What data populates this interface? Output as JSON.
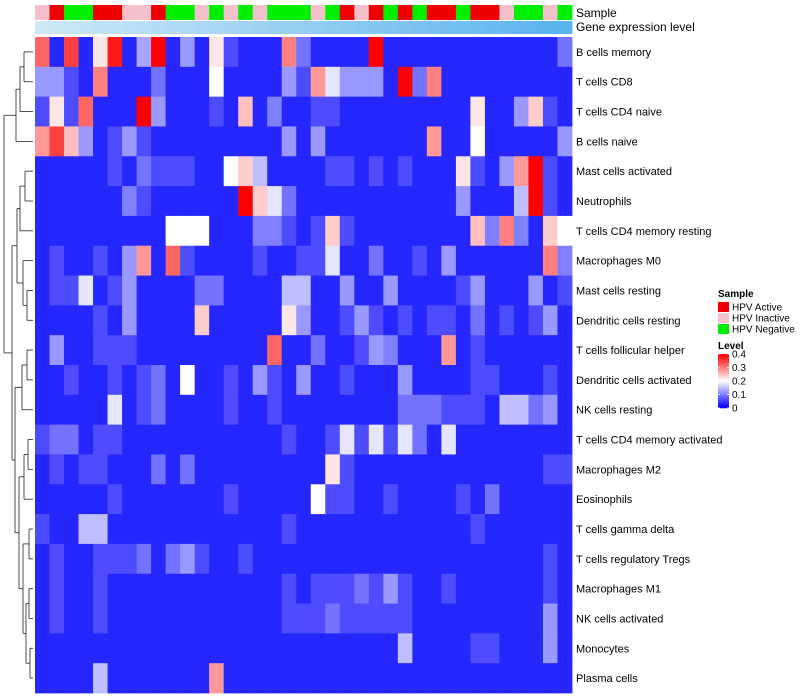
{
  "chart_data": {
    "type": "heatmap",
    "title": "",
    "annotation_labels": [
      "Sample",
      "Gene expression level"
    ],
    "row_labels": [
      "B cells memory",
      "T cells CD8",
      "T cells CD4 naive",
      "B cells naive",
      "Mast cells activated",
      "Neutrophils",
      "T cells CD4 memory resting",
      "Macrophages M0",
      "Mast cells resting",
      "Dendritic cells resting",
      "T cells follicular helper",
      "Dendritic cells activated",
      "NK cells resting",
      "T cells CD4 memory activated",
      "Macrophages M2",
      "Eosinophils",
      "T cells gamma delta",
      "T cells regulatory  Tregs",
      "Macrophages M1",
      "NK cells activated",
      "Monocytes",
      "Plasma cells"
    ],
    "sample_groups": [
      "Inactive",
      "Active",
      "Negative",
      "Negative",
      "Active",
      "Active",
      "Inactive",
      "Inactive",
      "Active",
      "Negative",
      "Negative",
      "Inactive",
      "Negative",
      "Inactive",
      "Negative",
      "Inactive",
      "Negative",
      "Negative",
      "Negative",
      "Inactive",
      "Negative",
      "Active",
      "Inactive",
      "Active",
      "Negative",
      "Active",
      "Negative",
      "Active",
      "Active",
      "Negative",
      "Active",
      "Active",
      "Inactive",
      "Negative",
      "Negative",
      "Inactive",
      "Negative"
    ],
    "gene_expression_row": "light",
    "values": [
      [
        0.32,
        0.03,
        0.35,
        0.03,
        0.22,
        0.38,
        0.03,
        0.13,
        0.42,
        0.03,
        0.12,
        0.03,
        0.22,
        0.06,
        0.03,
        0.03,
        0.03,
        0.3,
        0.09,
        0.03,
        0.03,
        0.03,
        0.03,
        0.42,
        0.03,
        0.03,
        0.03,
        0.03,
        0.03,
        0.03,
        0.03,
        0.03,
        0.03,
        0.03,
        0.03,
        0.03,
        0.09
      ],
      [
        0.12,
        0.12,
        0.06,
        0.03,
        0.3,
        0.03,
        0.03,
        0.03,
        0.09,
        0.03,
        0.03,
        0.03,
        0.2,
        0.03,
        0.03,
        0.03,
        0.03,
        0.12,
        0.06,
        0.28,
        0.18,
        0.12,
        0.12,
        0.12,
        0.03,
        0.42,
        0.09,
        0.3,
        0.03,
        0.03,
        0.03,
        0.03,
        0.03,
        0.03,
        0.03,
        0.03,
        0.03
      ],
      [
        0.06,
        0.22,
        0.06,
        0.32,
        0.03,
        0.03,
        0.03,
        0.42,
        0.12,
        0.03,
        0.03,
        0.03,
        0.06,
        0.03,
        0.25,
        0.03,
        0.1,
        0.03,
        0.03,
        0.06,
        0.06,
        0.03,
        0.03,
        0.03,
        0.03,
        0.03,
        0.03,
        0.03,
        0.03,
        0.03,
        0.22,
        0.03,
        0.03,
        0.12,
        0.24,
        0.06,
        0.03
      ],
      [
        0.28,
        0.35,
        0.25,
        0.12,
        0.03,
        0.06,
        0.12,
        0.06,
        0.03,
        0.03,
        0.03,
        0.03,
        0.03,
        0.03,
        0.03,
        0.03,
        0.03,
        0.12,
        0.03,
        0.12,
        0.03,
        0.03,
        0.03,
        0.03,
        0.03,
        0.03,
        0.03,
        0.28,
        0.03,
        0.03,
        0.2,
        0.03,
        0.03,
        0.03,
        0.03,
        0.03,
        0.12
      ],
      [
        0.03,
        0.03,
        0.03,
        0.03,
        0.03,
        0.06,
        0.03,
        0.09,
        0.06,
        0.06,
        0.06,
        0.03,
        0.03,
        0.2,
        0.24,
        0.15,
        0.03,
        0.03,
        0.03,
        0.03,
        0.06,
        0.06,
        0.03,
        0.06,
        0.03,
        0.06,
        0.03,
        0.03,
        0.03,
        0.22,
        0.06,
        0.03,
        0.12,
        0.28,
        0.42,
        0.06,
        0.03
      ],
      [
        0.03,
        0.03,
        0.03,
        0.03,
        0.03,
        0.03,
        0.1,
        0.06,
        0.03,
        0.03,
        0.03,
        0.03,
        0.03,
        0.03,
        0.42,
        0.24,
        0.18,
        0.09,
        0.03,
        0.03,
        0.03,
        0.03,
        0.03,
        0.03,
        0.03,
        0.03,
        0.03,
        0.03,
        0.03,
        0.12,
        0.03,
        0.03,
        0.03,
        0.15,
        0.42,
        0.06,
        0.03
      ],
      [
        0.03,
        0.03,
        0.03,
        0.03,
        0.03,
        0.03,
        0.03,
        0.03,
        0.03,
        0.2,
        0.2,
        0.2,
        0.03,
        0.03,
        0.03,
        0.1,
        0.1,
        0.06,
        0.03,
        0.06,
        0.24,
        0.06,
        0.03,
        0.03,
        0.03,
        0.03,
        0.03,
        0.03,
        0.03,
        0.03,
        0.25,
        0.1,
        0.3,
        0.1,
        0.03,
        0.24,
        0.2
      ],
      [
        0.03,
        0.06,
        0.03,
        0.03,
        0.06,
        0.03,
        0.12,
        0.28,
        0.03,
        0.32,
        0.06,
        0.03,
        0.03,
        0.03,
        0.03,
        0.06,
        0.03,
        0.03,
        0.06,
        0.06,
        0.18,
        0.03,
        0.03,
        0.09,
        0.03,
        0.03,
        0.06,
        0.03,
        0.12,
        0.03,
        0.03,
        0.03,
        0.03,
        0.03,
        0.03,
        0.3,
        0.1
      ],
      [
        0.03,
        0.06,
        0.06,
        0.18,
        0.03,
        0.06,
        0.12,
        0.03,
        0.03,
        0.03,
        0.03,
        0.09,
        0.09,
        0.03,
        0.03,
        0.03,
        0.03,
        0.15,
        0.15,
        0.03,
        0.03,
        0.12,
        0.03,
        0.03,
        0.12,
        0.03,
        0.03,
        0.03,
        0.03,
        0.06,
        0.12,
        0.03,
        0.03,
        0.03,
        0.12,
        0.03,
        0.06
      ],
      [
        0.03,
        0.03,
        0.03,
        0.03,
        0.06,
        0.03,
        0.12,
        0.03,
        0.03,
        0.03,
        0.03,
        0.24,
        0.03,
        0.03,
        0.03,
        0.03,
        0.03,
        0.22,
        0.12,
        0.03,
        0.03,
        0.06,
        0.12,
        0.06,
        0.03,
        0.06,
        0.03,
        0.06,
        0.06,
        0.03,
        0.09,
        0.03,
        0.06,
        0.03,
        0.06,
        0.12,
        0.03
      ],
      [
        0.03,
        0.12,
        0.03,
        0.03,
        0.06,
        0.06,
        0.06,
        0.03,
        0.03,
        0.03,
        0.03,
        0.03,
        0.03,
        0.03,
        0.03,
        0.03,
        0.32,
        0.03,
        0.03,
        0.09,
        0.03,
        0.03,
        0.06,
        0.12,
        0.1,
        0.03,
        0.03,
        0.03,
        0.28,
        0.03,
        0.06,
        0.03,
        0.03,
        0.03,
        0.03,
        0.03,
        0.03
      ],
      [
        0.03,
        0.03,
        0.06,
        0.03,
        0.03,
        0.06,
        0.03,
        0.06,
        0.09,
        0.03,
        0.2,
        0.03,
        0.03,
        0.06,
        0.03,
        0.12,
        0.06,
        0.03,
        0.12,
        0.03,
        0.03,
        0.06,
        0.03,
        0.03,
        0.03,
        0.12,
        0.03,
        0.03,
        0.03,
        0.03,
        0.06,
        0.06,
        0.03,
        0.03,
        0.03,
        0.06,
        0.03
      ],
      [
        0.03,
        0.03,
        0.03,
        0.03,
        0.03,
        0.18,
        0.03,
        0.06,
        0.09,
        0.03,
        0.03,
        0.03,
        0.03,
        0.06,
        0.03,
        0.03,
        0.06,
        0.03,
        0.03,
        0.03,
        0.03,
        0.03,
        0.03,
        0.03,
        0.03,
        0.09,
        0.09,
        0.09,
        0.06,
        0.06,
        0.06,
        0.03,
        0.15,
        0.15,
        0.09,
        0.12,
        0.03
      ],
      [
        0.06,
        0.09,
        0.09,
        0.03,
        0.06,
        0.06,
        0.03,
        0.03,
        0.03,
        0.03,
        0.03,
        0.03,
        0.03,
        0.03,
        0.03,
        0.03,
        0.03,
        0.06,
        0.03,
        0.03,
        0.06,
        0.18,
        0.06,
        0.18,
        0.06,
        0.18,
        0.09,
        0.03,
        0.18,
        0.03,
        0.03,
        0.03,
        0.03,
        0.03,
        0.03,
        0.03,
        0.03
      ],
      [
        0.03,
        0.06,
        0.03,
        0.06,
        0.06,
        0.03,
        0.03,
        0.03,
        0.09,
        0.03,
        0.09,
        0.03,
        0.03,
        0.03,
        0.03,
        0.03,
        0.03,
        0.03,
        0.03,
        0.03,
        0.22,
        0.06,
        0.03,
        0.03,
        0.03,
        0.03,
        0.03,
        0.03,
        0.03,
        0.03,
        0.03,
        0.03,
        0.03,
        0.03,
        0.03,
        0.06,
        0.06
      ],
      [
        0.03,
        0.03,
        0.03,
        0.03,
        0.03,
        0.06,
        0.03,
        0.03,
        0.03,
        0.03,
        0.03,
        0.03,
        0.03,
        0.06,
        0.03,
        0.03,
        0.03,
        0.03,
        0.03,
        0.2,
        0.06,
        0.06,
        0.03,
        0.03,
        0.06,
        0.03,
        0.03,
        0.03,
        0.03,
        0.06,
        0.03,
        0.09,
        0.03,
        0.03,
        0.03,
        0.03,
        0.03
      ],
      [
        0.06,
        0.03,
        0.03,
        0.15,
        0.15,
        0.03,
        0.03,
        0.03,
        0.03,
        0.03,
        0.03,
        0.03,
        0.03,
        0.03,
        0.03,
        0.03,
        0.03,
        0.06,
        0.03,
        0.03,
        0.03,
        0.03,
        0.03,
        0.03,
        0.03,
        0.03,
        0.03,
        0.03,
        0.03,
        0.03,
        0.06,
        0.03,
        0.03,
        0.03,
        0.03,
        0.03,
        0.03
      ],
      [
        0.03,
        0.06,
        0.03,
        0.03,
        0.06,
        0.06,
        0.06,
        0.09,
        0.03,
        0.09,
        0.12,
        0.06,
        0.03,
        0.03,
        0.06,
        0.03,
        0.03,
        0.03,
        0.03,
        0.03,
        0.03,
        0.03,
        0.03,
        0.03,
        0.03,
        0.03,
        0.03,
        0.03,
        0.03,
        0.03,
        0.03,
        0.03,
        0.03,
        0.03,
        0.03,
        0.06,
        0.03
      ],
      [
        0.03,
        0.06,
        0.03,
        0.03,
        0.06,
        0.03,
        0.03,
        0.03,
        0.03,
        0.03,
        0.03,
        0.03,
        0.03,
        0.03,
        0.03,
        0.03,
        0.03,
        0.06,
        0.03,
        0.06,
        0.06,
        0.06,
        0.09,
        0.06,
        0.12,
        0.06,
        0.03,
        0.03,
        0.06,
        0.03,
        0.03,
        0.03,
        0.03,
        0.03,
        0.03,
        0.06,
        0.03
      ],
      [
        0.03,
        0.06,
        0.03,
        0.03,
        0.06,
        0.03,
        0.03,
        0.03,
        0.03,
        0.03,
        0.03,
        0.03,
        0.03,
        0.03,
        0.03,
        0.03,
        0.03,
        0.06,
        0.06,
        0.06,
        0.09,
        0.06,
        0.06,
        0.06,
        0.06,
        0.06,
        0.03,
        0.03,
        0.03,
        0.03,
        0.03,
        0.03,
        0.03,
        0.03,
        0.03,
        0.12,
        0.03
      ],
      [
        0.03,
        0.03,
        0.03,
        0.03,
        0.03,
        0.03,
        0.03,
        0.03,
        0.03,
        0.03,
        0.03,
        0.03,
        0.03,
        0.03,
        0.03,
        0.03,
        0.03,
        0.03,
        0.03,
        0.03,
        0.03,
        0.03,
        0.03,
        0.03,
        0.03,
        0.15,
        0.03,
        0.03,
        0.03,
        0.03,
        0.06,
        0.06,
        0.03,
        0.03,
        0.03,
        0.12,
        0.03
      ],
      [
        0.03,
        0.03,
        0.03,
        0.03,
        0.15,
        0.03,
        0.03,
        0.03,
        0.03,
        0.03,
        0.03,
        0.03,
        0.28,
        0.03,
        0.03,
        0.03,
        0.03,
        0.03,
        0.03,
        0.03,
        0.03,
        0.03,
        0.03,
        0.03,
        0.03,
        0.03,
        0.03,
        0.03,
        0.03,
        0.03,
        0.03,
        0.03,
        0.03,
        0.03,
        0.03,
        0.03,
        0.03
      ]
    ],
    "legend": {
      "sample_title": "Sample",
      "sample_entries": [
        {
          "name": "HPV Active",
          "color": "#ee0000"
        },
        {
          "name": "HPV Inactive",
          "color": "#f4c0cb"
        },
        {
          "name": "HPV Negative",
          "color": "#00ee00"
        }
      ],
      "level_title": "Level",
      "level_ticks": [
        "0.4",
        "0.3",
        "0.2",
        "0.1",
        "0"
      ],
      "level_range": [
        0,
        0.4
      ],
      "placement": "right"
    },
    "colors": {
      "low": "#0000ff",
      "mid": "#ffffff",
      "high": "#ff0000",
      "gene_expression": "#5ab4ee"
    }
  }
}
